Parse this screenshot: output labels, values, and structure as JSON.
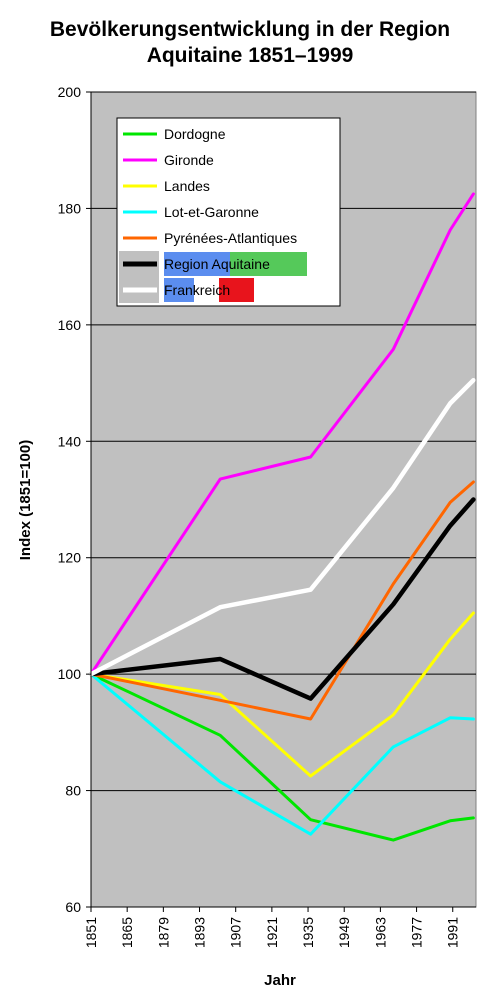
{
  "chart_data": {
    "type": "line",
    "title": "Bevölkerungsentwicklung in der Region",
    "subtitle": "Aquitaine 1851–1999",
    "xlabel": "Jahr",
    "ylabel": "Index (1851=100)",
    "xlim": [
      1851,
      2000
    ],
    "ylim": [
      60,
      200
    ],
    "y_ticks": [
      60,
      80,
      100,
      120,
      140,
      160,
      180,
      200
    ],
    "x_ticks": [
      1851,
      1865,
      1879,
      1893,
      1907,
      1921,
      1935,
      1949,
      1963,
      1977,
      1991
    ],
    "grid": "horizontal",
    "legend_position": "top-left",
    "plot_background": "#c0c0c0",
    "series": [
      {
        "name": "Dordogne",
        "color": "#00e600",
        "x": [
          1851,
          1901,
          1936,
          1968,
          1990,
          1999
        ],
        "y": [
          100,
          89.5,
          75,
          71.5,
          74.8,
          75.3
        ]
      },
      {
        "name": "Gironde",
        "color": "#ff00ff",
        "x": [
          1851,
          1901,
          1936,
          1968,
          1990,
          1999
        ],
        "y": [
          100,
          133.5,
          137.3,
          155.8,
          176.3,
          182.5
        ]
      },
      {
        "name": "Landes",
        "color": "#ffff00",
        "x": [
          1851,
          1901,
          1936,
          1968,
          1990,
          1999
        ],
        "y": [
          100,
          96.5,
          82.5,
          93,
          106,
          110.5
        ]
      },
      {
        "name": "Lot-et-Garonne",
        "color": "#00ffff",
        "x": [
          1851,
          1901,
          1936,
          1968,
          1990,
          1999
        ],
        "y": [
          100,
          81.5,
          72.5,
          87.5,
          92.5,
          92.3
        ]
      },
      {
        "name": "Pyrénées-Atlantiques",
        "color": "#ff6600",
        "x": [
          1851,
          1901,
          1936,
          1968,
          1990,
          1999
        ],
        "y": [
          100,
          95.5,
          92.3,
          115.5,
          129.5,
          133
        ]
      },
      {
        "name": "Region Aquitaine",
        "color": "#000000",
        "x": [
          1851,
          1901,
          1936,
          1968,
          1990,
          1999
        ],
        "y": [
          100,
          102.6,
          95.8,
          112,
          125.5,
          130
        ]
      },
      {
        "name": "Frankreich",
        "color": "#ffffff",
        "x": [
          1851,
          1901,
          1936,
          1968,
          1990,
          1999
        ],
        "y": [
          100,
          111.5,
          114.5,
          132,
          146.5,
          150.5
        ]
      }
    ],
    "legend_highlight_colors": [
      "#5b8def",
      "#55c95a",
      "#e8141c"
    ]
  }
}
